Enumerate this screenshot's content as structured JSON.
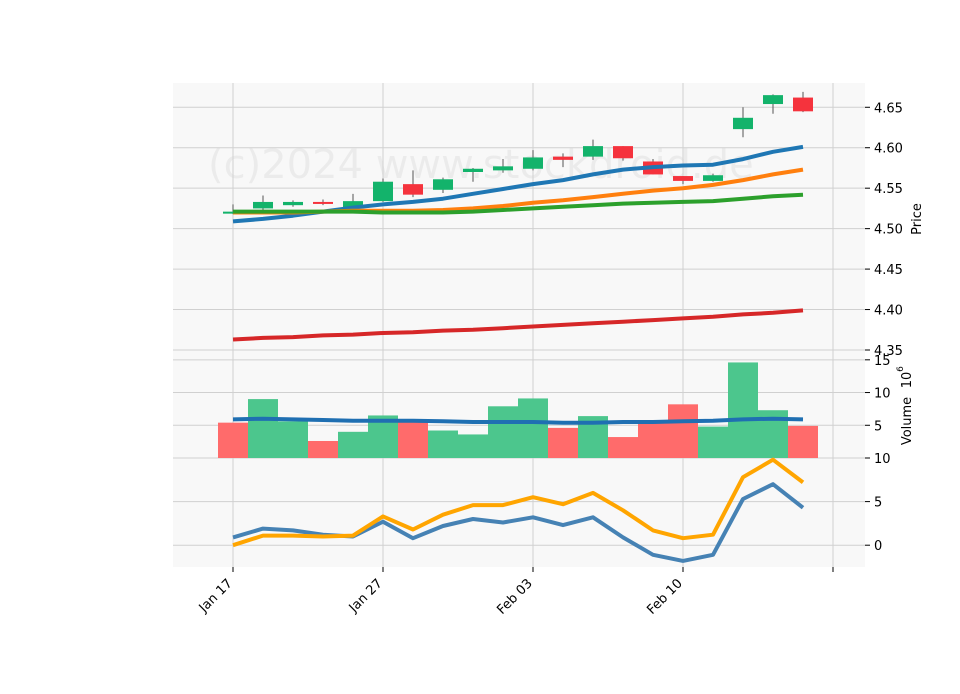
{
  "watermark": "(c)2024 www.stockdroid.de",
  "price_axis_label": "Price",
  "volume_axis_label": "Volume",
  "volume_exponent": "10",
  "volume_exponent_power": "6",
  "chart_data": {
    "type": "candlestick",
    "x_ticks": [
      {
        "i": 0,
        "label": "Jan 17"
      },
      {
        "i": 5,
        "label": "Jan 27"
      },
      {
        "i": 10,
        "label": "Feb 03"
      },
      {
        "i": 15,
        "label": "Feb 10"
      },
      {
        "i": 20,
        "label": ""
      }
    ],
    "price_panel": {
      "ylabel": "Price",
      "ylim": [
        4.35,
        4.68
      ],
      "yticks": [
        4.35,
        4.4,
        4.45,
        4.5,
        4.55,
        4.6,
        4.65
      ],
      "candles": [
        {
          "o": 4.521,
          "h": 4.53,
          "l": 4.518,
          "c": 4.521
        },
        {
          "o": 4.525,
          "h": 4.541,
          "l": 4.52,
          "c": 4.533
        },
        {
          "o": 4.529,
          "h": 4.535,
          "l": 4.527,
          "c": 4.533
        },
        {
          "o": 4.533,
          "h": 4.536,
          "l": 4.529,
          "c": 4.531
        },
        {
          "o": 4.526,
          "h": 4.543,
          "l": 4.524,
          "c": 4.534
        },
        {
          "o": 4.534,
          "h": 4.562,
          "l": 4.533,
          "c": 4.558
        },
        {
          "o": 4.555,
          "h": 4.572,
          "l": 4.539,
          "c": 4.542
        },
        {
          "o": 4.548,
          "h": 4.563,
          "l": 4.544,
          "c": 4.561
        },
        {
          "o": 4.57,
          "h": 4.575,
          "l": 4.558,
          "c": 4.574
        },
        {
          "o": 4.572,
          "h": 4.586,
          "l": 4.569,
          "c": 4.577
        },
        {
          "o": 4.574,
          "h": 4.597,
          "l": 4.572,
          "c": 4.588
        },
        {
          "o": 4.589,
          "h": 4.593,
          "l": 4.576,
          "c": 4.585
        },
        {
          "o": 4.589,
          "h": 4.61,
          "l": 4.585,
          "c": 4.602
        },
        {
          "o": 4.602,
          "h": 4.602,
          "l": 4.584,
          "c": 4.587
        },
        {
          "o": 4.583,
          "h": 4.586,
          "l": 4.567,
          "c": 4.567
        },
        {
          "o": 4.565,
          "h": 4.565,
          "l": 4.555,
          "c": 4.559
        },
        {
          "o": 4.559,
          "h": 4.568,
          "l": 4.558,
          "c": 4.566
        },
        {
          "o": 4.623,
          "h": 4.65,
          "l": 4.613,
          "c": 4.637
        },
        {
          "o": 4.654,
          "h": 4.666,
          "l": 4.642,
          "c": 4.665
        },
        {
          "o": 4.662,
          "h": 4.669,
          "l": 4.644,
          "c": 4.645
        }
      ],
      "series": [
        {
          "color": "#1f77b4",
          "values": [
            4.509,
            4.512,
            4.516,
            4.521,
            4.526,
            4.53,
            4.533,
            4.537,
            4.543,
            4.549,
            4.555,
            4.56,
            4.567,
            4.573,
            4.576,
            4.578,
            4.579,
            4.586,
            4.595,
            4.601
          ]
        },
        {
          "color": "#ff7f0e",
          "values": [
            4.52,
            4.52,
            4.52,
            4.521,
            4.522,
            4.522,
            4.522,
            4.523,
            4.525,
            4.528,
            4.532,
            4.535,
            4.539,
            4.543,
            4.547,
            4.55,
            4.554,
            4.56,
            4.567,
            4.573
          ]
        },
        {
          "color": "#2ca02c",
          "values": [
            4.521,
            4.521,
            4.521,
            4.521,
            4.521,
            4.52,
            4.52,
            4.52,
            4.521,
            4.523,
            4.525,
            4.527,
            4.529,
            4.531,
            4.532,
            4.533,
            4.534,
            4.537,
            4.54,
            4.542
          ]
        },
        {
          "color": "#d62728",
          "values": [
            4.363,
            4.365,
            4.366,
            4.368,
            4.369,
            4.371,
            4.372,
            4.374,
            4.375,
            4.377,
            4.379,
            4.381,
            4.383,
            4.385,
            4.387,
            4.389,
            4.391,
            4.394,
            4.396,
            4.399
          ]
        }
      ]
    },
    "volume_panel": {
      "ylabel": "Volume",
      "ylim": [
        0,
        16.5
      ],
      "yticks": [
        5,
        10,
        15
      ],
      "bars": [
        {
          "v": 5.4,
          "dir": "down"
        },
        {
          "v": 9.0,
          "dir": "up"
        },
        {
          "v": 5.6,
          "dir": "up"
        },
        {
          "v": 2.6,
          "dir": "down"
        },
        {
          "v": 4.0,
          "dir": "up"
        },
        {
          "v": 6.5,
          "dir": "up"
        },
        {
          "v": 5.7,
          "dir": "down"
        },
        {
          "v": 4.2,
          "dir": "up"
        },
        {
          "v": 3.6,
          "dir": "up"
        },
        {
          "v": 7.9,
          "dir": "up"
        },
        {
          "v": 9.1,
          "dir": "up"
        },
        {
          "v": 4.6,
          "dir": "down"
        },
        {
          "v": 6.4,
          "dir": "up"
        },
        {
          "v": 3.2,
          "dir": "down"
        },
        {
          "v": 5.3,
          "dir": "down"
        },
        {
          "v": 8.2,
          "dir": "down"
        },
        {
          "v": 4.8,
          "dir": "up"
        },
        {
          "v": 14.6,
          "dir": "up"
        },
        {
          "v": 7.3,
          "dir": "up"
        },
        {
          "v": 4.9,
          "dir": "down"
        }
      ],
      "ma": [
        5.9,
        6.0,
        5.9,
        5.8,
        5.7,
        5.7,
        5.7,
        5.6,
        5.5,
        5.5,
        5.5,
        5.4,
        5.4,
        5.5,
        5.5,
        5.6,
        5.7,
        5.9,
        6.0,
        5.9
      ]
    },
    "indicator_panel": {
      "ylim": [
        -2.5,
        10.0
      ],
      "yticks": [
        0,
        5,
        10
      ],
      "series": [
        {
          "color": "#4682b4",
          "values": [
            0.9,
            1.9,
            1.7,
            1.2,
            1.0,
            2.7,
            0.8,
            2.2,
            3.0,
            2.6,
            3.2,
            2.3,
            3.2,
            0.9,
            -1.1,
            -1.8,
            -1.1,
            5.3,
            7.0,
            4.3
          ]
        },
        {
          "color": "#ffa500",
          "values": [
            0.0,
            1.1,
            1.1,
            1.0,
            1.1,
            3.3,
            1.8,
            3.5,
            4.6,
            4.6,
            5.5,
            4.7,
            6.0,
            4.0,
            1.7,
            0.8,
            1.2,
            7.8,
            9.8,
            7.2
          ]
        }
      ]
    }
  }
}
